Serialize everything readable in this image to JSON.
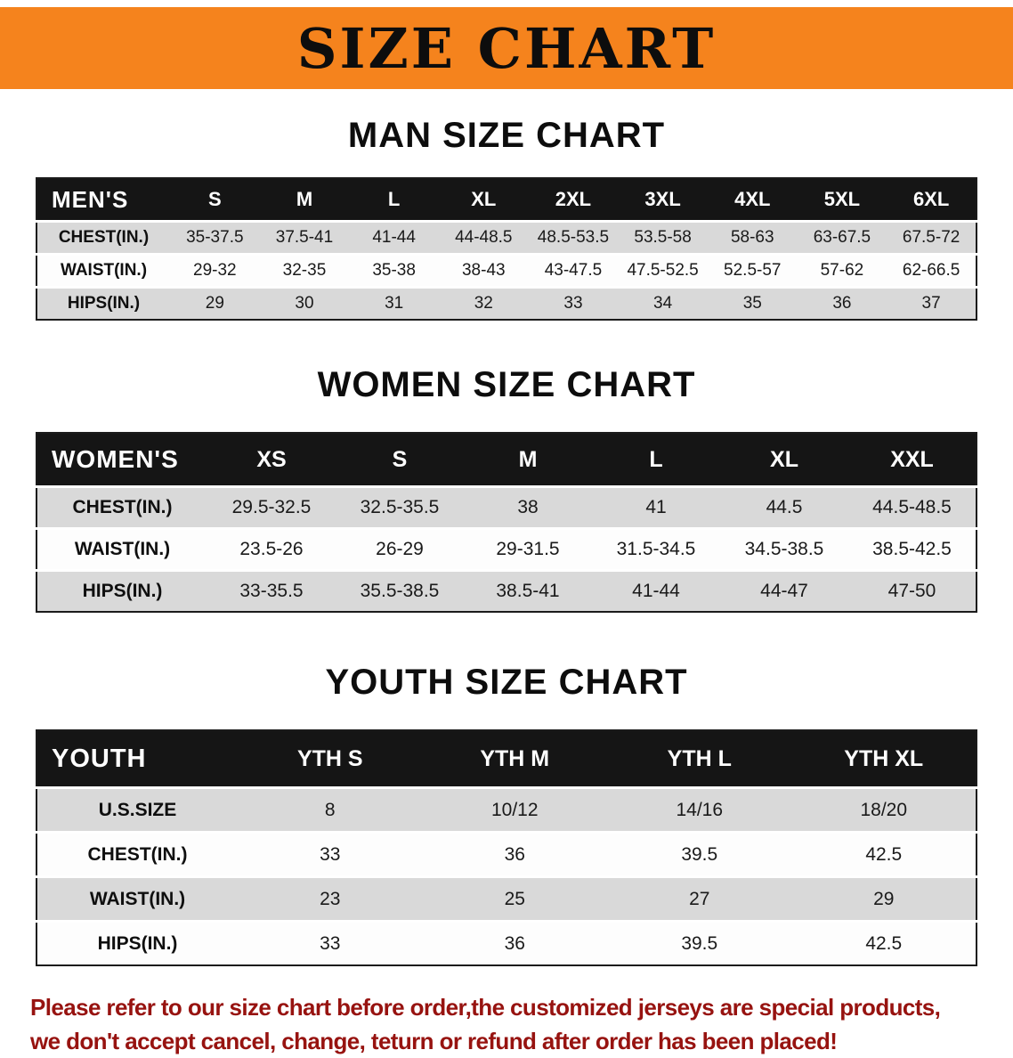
{
  "banner": {
    "title": "SIZE CHART"
  },
  "men": {
    "heading": "MAN SIZE CHART",
    "header": [
      "MEN'S",
      "S",
      "M",
      "L",
      "XL",
      "2XL",
      "3XL",
      "4XL",
      "5XL",
      "6XL"
    ],
    "rows": [
      {
        "label": "CHEST(IN.)",
        "values": [
          "35-37.5",
          "37.5-41",
          "41-44",
          "44-48.5",
          "48.5-53.5",
          "53.5-58",
          "58-63",
          "63-67.5",
          "67.5-72"
        ]
      },
      {
        "label": "WAIST(IN.)",
        "values": [
          "29-32",
          "32-35",
          "35-38",
          "38-43",
          "43-47.5",
          "47.5-52.5",
          "52.5-57",
          "57-62",
          "62-66.5"
        ]
      },
      {
        "label": "HIPS(IN.)",
        "values": [
          "29",
          "30",
          "31",
          "32",
          "33",
          "34",
          "35",
          "36",
          "37"
        ]
      }
    ]
  },
  "women": {
    "heading": "WOMEN SIZE CHART",
    "header": [
      "WOMEN'S",
      "XS",
      "S",
      "M",
      "L",
      "XL",
      "XXL"
    ],
    "rows": [
      {
        "label": "CHEST(IN.)",
        "values": [
          "29.5-32.5",
          "32.5-35.5",
          "38",
          "41",
          "44.5",
          "44.5-48.5"
        ]
      },
      {
        "label": "WAIST(IN.)",
        "values": [
          "23.5-26",
          "26-29",
          "29-31.5",
          "31.5-34.5",
          "34.5-38.5",
          "38.5-42.5"
        ]
      },
      {
        "label": "HIPS(IN.)",
        "values": [
          "33-35.5",
          "35.5-38.5",
          "38.5-41",
          "41-44",
          "44-47",
          "47-50"
        ]
      }
    ]
  },
  "youth": {
    "heading": "YOUTH SIZE CHART",
    "header": [
      "YOUTH",
      "YTH S",
      "YTH M",
      "YTH L",
      "YTH XL"
    ],
    "rows": [
      {
        "label": "U.S.SIZE",
        "values": [
          "8",
          "10/12",
          "14/16",
          "18/20"
        ]
      },
      {
        "label": "CHEST(IN.)",
        "values": [
          "33",
          "36",
          "39.5",
          "42.5"
        ]
      },
      {
        "label": "WAIST(IN.)",
        "values": [
          "23",
          "25",
          "27",
          "29"
        ]
      },
      {
        "label": "HIPS(IN.)",
        "values": [
          "33",
          "36",
          "39.5",
          "42.5"
        ]
      }
    ]
  },
  "footer": {
    "line1": "Please refer to our size chart before order,the customized jerseys are special products,",
    "line2": "we don't accept cancel, change, teturn or refund after order has been placed!"
  },
  "colors": {
    "banner_bg": "#f5831d",
    "table_header_bg": "#151515",
    "row_alt_bg": "#d9d9d9",
    "footer_text": "#971310"
  }
}
